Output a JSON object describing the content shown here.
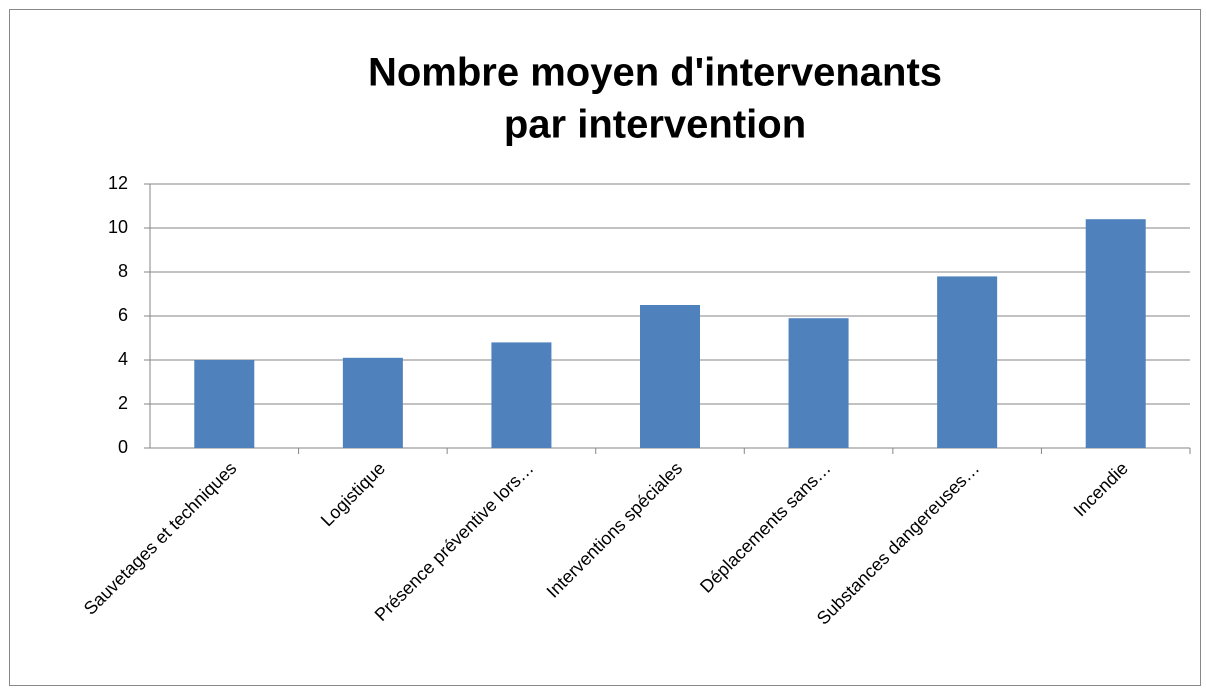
{
  "chart_data": {
    "type": "bar",
    "title": [
      "Nombre moyen d'intervenants",
      "par intervention"
    ],
    "categories": [
      "Sauvetages et techniques",
      "Logistique",
      "Présence préventive lors…",
      "Interventions spéciales",
      "Déplacements sans…",
      "Substances dangereuses…",
      "Incendie"
    ],
    "values": [
      4.0,
      4.1,
      4.8,
      6.5,
      5.9,
      7.8,
      10.4
    ],
    "color": "#4f81bd",
    "ylim": [
      0,
      12
    ],
    "yticks": [
      0,
      2,
      4,
      6,
      8,
      10,
      12
    ],
    "grid": true
  }
}
